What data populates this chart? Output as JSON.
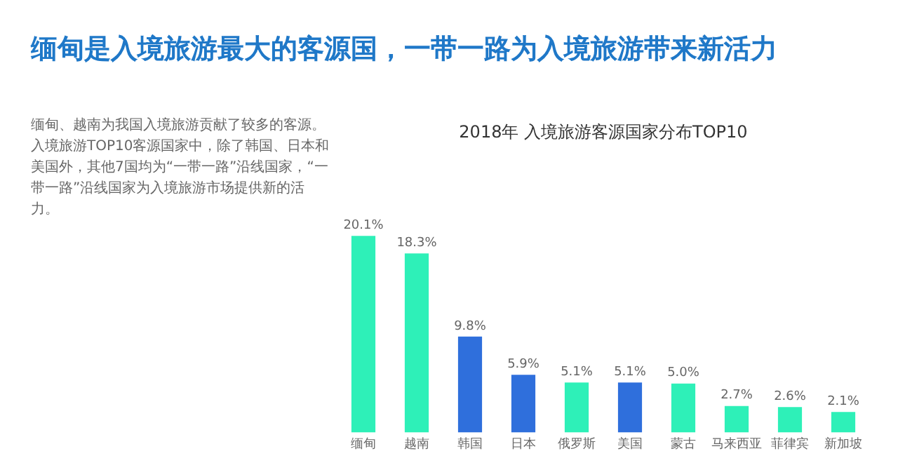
{
  "chart_data": {
    "type": "bar",
    "title": "缅甸是入境旅游最大的客源国，一带一路为入境旅游带来新活力",
    "subtitle": "2018年 入境旅游客源国家分布TOP10",
    "annotations": [
      "缅甸、越南为我国入境旅游贡献了较多的客源。入境旅游TOP10客源国家中，除了韩国、日本和美国外，其他7国均为“一带一路”沿线国家，“一带一路”沿线国家为入境旅游市场提供新的活力。"
    ],
    "categories": [
      "缅甸",
      "越南",
      "韩国",
      "日本",
      "俄罗斯",
      "美国",
      "蒙古",
      "马来西亚",
      "菲律宾",
      "新加坡"
    ],
    "values": [
      20.1,
      18.3,
      9.8,
      5.9,
      5.1,
      5.1,
      5.0,
      2.7,
      2.6,
      2.1
    ],
    "colors": [
      "#2ef0b8",
      "#2ef0b8",
      "#2f6fdc",
      "#2f6fdc",
      "#2ef0b8",
      "#2f6fdc",
      "#2ef0b8",
      "#2ef0b8",
      "#2ef0b8",
      "#2ef0b8"
    ],
    "value_labels": [
      "20.1%",
      "18.3%",
      "9.8%",
      "5.9%",
      "5.1%",
      "5.1%",
      "5.0%",
      "2.7%",
      "2.6%",
      "2.1%"
    ],
    "grid": false,
    "legend": false,
    "tick_labels": "x"
  }
}
